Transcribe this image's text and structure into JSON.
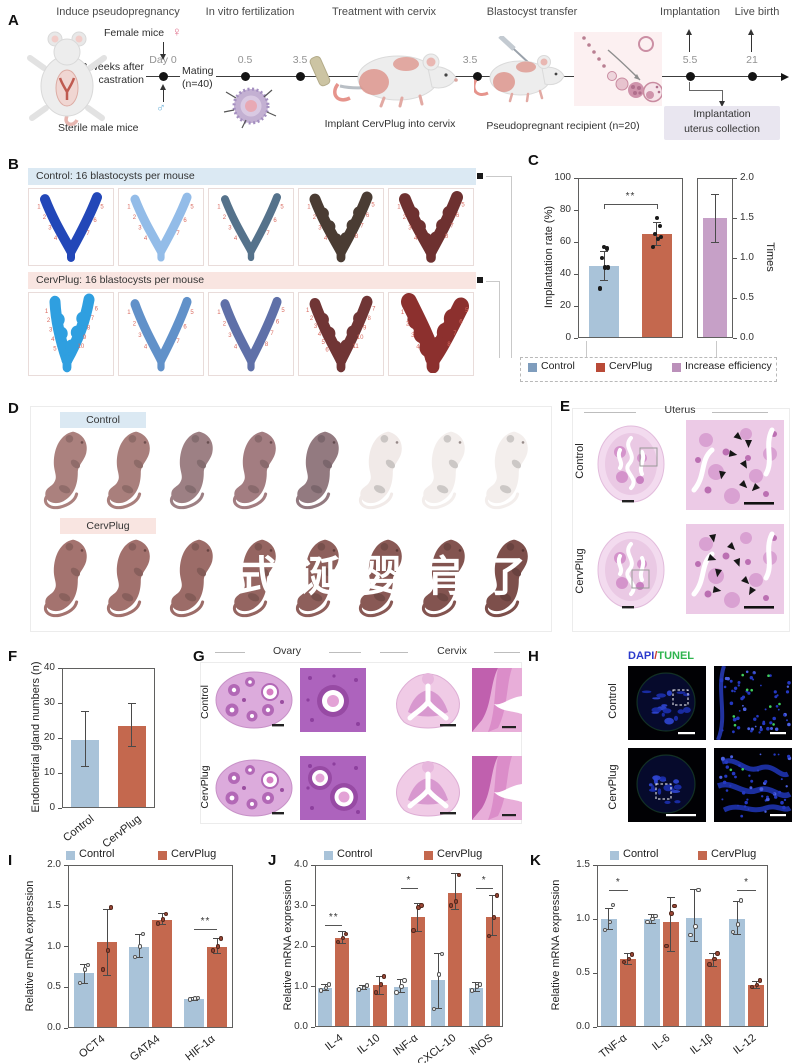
{
  "figure": {
    "panel_a": {
      "label": "A",
      "phases": [
        "Induce pseudopregnancy",
        "In vitro fertilization",
        "Treatment with cervix",
        "Blastocyst transfer",
        "Implantation",
        "Live birth"
      ],
      "female_label": "Female mice",
      "female_symbol": "♀",
      "male_symbol": "♂",
      "castration": [
        "2 weeks after",
        "castration"
      ],
      "sterile_label": "Sterile male mice",
      "day0_label": "Day 0",
      "mating": [
        "Mating",
        "(n=40)"
      ],
      "timepoints": [
        "0.5",
        "3.5",
        "3.5",
        "5.5",
        "21"
      ],
      "implant_caption": "Implant CervPlug into cervix",
      "recipient_caption": "Pseudopregnant recipient (n=20)",
      "collection_box": [
        "Implantation",
        "uterus collection"
      ]
    },
    "panel_b": {
      "label": "B",
      "control_header": "Control: 16 blastocysts per mouse",
      "cervplug_header": "CervPlug: 16 blastocysts per mouse",
      "site_number_color": "#d96a5f",
      "control_uteri": [
        {
          "color": "#2247b8",
          "sites": 7,
          "w": 10,
          "shape": "v"
        },
        {
          "color": "#93bce8",
          "sites": 7,
          "w": 9,
          "shape": "v"
        },
        {
          "color": "#55728b",
          "sites": 7,
          "w": 8,
          "shape": "v"
        },
        {
          "color": "#4a3c33",
          "sites": 8,
          "w": 11,
          "shape": "v"
        },
        {
          "color": "#6e3130",
          "sites": 8,
          "w": 12,
          "shape": "v"
        }
      ],
      "cervplug_uteri": [
        {
          "color": "#2f9fe0",
          "sites": 10,
          "w": 11,
          "shape": "narrow"
        },
        {
          "color": "#6191c9",
          "sites": 7,
          "w": 9,
          "shape": "v"
        },
        {
          "color": "#5f70a8",
          "sites": 8,
          "w": 9,
          "shape": "v"
        },
        {
          "color": "#703535",
          "sites": 11,
          "w": 11,
          "shape": "v"
        },
        {
          "color": "#8c302e",
          "sites": 8,
          "w": 16,
          "shape": "blob"
        }
      ]
    },
    "panel_c": {
      "label": "C",
      "legend": [
        {
          "label": "Control",
          "color": "#7f9dbd"
        },
        {
          "label": "CervPlug",
          "color": "#b94a37"
        },
        {
          "label": "Increase efficiency",
          "color": "#bb90ba"
        }
      ]
    },
    "panel_d": {
      "label": "D",
      "control_chip": "Control",
      "cervplug_chip": "CervPlug",
      "control_pup_colors": [
        "#ab817e",
        "#a97f7c",
        "#9d8084",
        "#a37d81",
        "#937a80",
        "#f1eae8",
        "#f3eeec",
        "#f3eeec"
      ],
      "cervplug_pup_colors": [
        "#a4736f",
        "#a2716d",
        "#9c6c68",
        "#956561",
        "#8e5f5b",
        "#895955",
        "#835450",
        "#7d4f4b"
      ],
      "watermark_chars": [
        "式",
        "诞",
        "婴",
        "肩",
        "了"
      ]
    },
    "panel_e": {
      "label": "E",
      "title": "Uterus",
      "rows": [
        "Control",
        "CervPlug"
      ]
    },
    "panel_f": {
      "label": "F"
    },
    "panel_g": {
      "label": "G",
      "col_titles": [
        "Ovary",
        "Cervix"
      ],
      "rows": [
        "Control",
        "CervPlug"
      ]
    },
    "panel_h": {
      "label": "H",
      "title_parts": [
        {
          "text": "DAPI",
          "color": "#2b3acc"
        },
        {
          "text": "/",
          "color": "#d03a30"
        },
        {
          "text": "TUNEL",
          "color": "#2eb44e"
        }
      ],
      "rows": [
        "Control",
        "CervPlug"
      ]
    },
    "panel_i": {
      "label": "I"
    },
    "panel_j": {
      "label": "J"
    },
    "panel_k": {
      "label": "K"
    }
  },
  "chart_data": [
    {
      "id": "implantation",
      "type": "bar",
      "ylabel": "Implantation rate (%)",
      "ylim": [
        0,
        100
      ],
      "yticks": [
        "0",
        "20",
        "40",
        "60",
        "80",
        "100"
      ],
      "categories": [
        "Control",
        "CervPlug"
      ],
      "values": [
        45,
        65
      ],
      "errors": [
        [
          36,
          54
        ],
        [
          58,
          72
        ]
      ],
      "dots": [
        [
          31,
          44,
          44,
          50,
          56,
          57
        ],
        [
          57,
          62,
          63,
          65,
          70,
          75
        ]
      ],
      "colors": [
        "#a9c3d9",
        "#c4684e"
      ],
      "significance": [
        {
          "a": 0,
          "b": 1,
          "y": 84,
          "label": "**"
        }
      ],
      "show_xticks": false
    },
    {
      "id": "efficiency",
      "type": "bar",
      "ylabel": "Times",
      "ylim": [
        0,
        2
      ],
      "yticks": [
        "0.0",
        "0.5",
        "1.0",
        "1.5",
        "2.0"
      ],
      "categories": [
        "Increase efficiency"
      ],
      "values": [
        1.5
      ],
      "errors": [
        [
          1.2,
          1.8
        ]
      ],
      "colors": [
        "#c6a0c7"
      ],
      "show_xticks": false
    },
    {
      "id": "glands",
      "type": "bar",
      "ylabel": "Endometrial gland numbers (n)",
      "ylim": [
        0,
        40
      ],
      "yticks": [
        "0",
        "10",
        "20",
        "30",
        "40"
      ],
      "categories": [
        "Control",
        "CervPlug"
      ],
      "values": [
        19.5,
        23.5
      ],
      "errors": [
        [
          12,
          27.5
        ],
        [
          17.5,
          30
        ]
      ],
      "colors": [
        "#a9c3d9",
        "#c4684e"
      ]
    },
    {
      "id": "mrna_embryo",
      "type": "grouped_bar",
      "ylabel": "Relative mRNA expression",
      "ylim": [
        0,
        2
      ],
      "yticks": [
        "0.0",
        "0.5",
        "1.0",
        "1.5",
        "2.0"
      ],
      "categories": [
        "OCT4",
        "GATA4",
        "HIF-1α"
      ],
      "series": [
        {
          "name": "Control",
          "color": "#a9c3d9",
          "values": [
            0.67,
            1.0,
            0.36
          ],
          "errors": [
            [
              0.55,
              0.78
            ],
            [
              0.86,
              1.15
            ],
            [
              0.34,
              0.38
            ]
          ],
          "dots": [
            [
              0.55,
              0.72,
              0.77
            ],
            [
              0.87,
              1.0,
              1.15
            ],
            [
              0.35,
              0.36,
              0.37
            ]
          ]
        },
        {
          "name": "CervPlug",
          "color": "#c4684e",
          "values": [
            1.05,
            1.33,
            1.0
          ],
          "errors": [
            [
              0.65,
              1.45
            ],
            [
              1.27,
              1.4
            ],
            [
              0.92,
              1.1
            ]
          ],
          "dots": [
            [
              0.72,
              0.95,
              1.48
            ],
            [
              1.28,
              1.33,
              1.4
            ],
            [
              0.95,
              1.0,
              1.1
            ]
          ]
        }
      ],
      "significance": [
        {
          "cat": 2,
          "y": 1.22,
          "label": "**"
        }
      ]
    },
    {
      "id": "mrna_immune_up",
      "type": "grouped_bar",
      "ylabel": "Relative mRNA expression",
      "ylim": [
        0,
        4
      ],
      "yticks": [
        "0.0",
        "1.0",
        "2.0",
        "3.0",
        "4.0"
      ],
      "categories": [
        "IL-4",
        "IL-10",
        "INF-α",
        "CXCL-10",
        "iNOS"
      ],
      "series": [
        {
          "name": "Control",
          "color": "#a9c3d9",
          "values": [
            0.97,
            0.97,
            1.0,
            1.15,
            0.97
          ],
          "errors": [
            [
              0.9,
              1.05
            ],
            [
              0.92,
              1.03
            ],
            [
              0.85,
              1.17
            ],
            [
              0.45,
              1.82
            ],
            [
              0.88,
              1.1
            ]
          ],
          "dots": [
            [
              0.9,
              0.97,
              1.05
            ],
            [
              0.93,
              0.97,
              1.02
            ],
            [
              0.85,
              1.0,
              1.15
            ],
            [
              0.45,
              1.3,
              1.8
            ],
            [
              0.9,
              1.0,
              1.05
            ]
          ]
        },
        {
          "name": "CervPlug",
          "color": "#c4684e",
          "values": [
            2.2,
            1.03,
            2.72,
            3.3,
            2.72
          ],
          "errors": [
            [
              2.05,
              2.35
            ],
            [
              0.8,
              1.25
            ],
            [
              2.35,
              3.05
            ],
            [
              2.9,
              3.78
            ],
            [
              2.25,
              3.25
            ]
          ],
          "dots": [
            [
              2.1,
              2.2,
              2.3
            ],
            [
              0.85,
              1.05,
              1.25
            ],
            [
              2.38,
              2.95,
              3.0
            ],
            [
              3.0,
              3.1,
              3.75
            ],
            [
              2.25,
              2.7,
              3.25
            ]
          ]
        }
      ],
      "significance": [
        {
          "cat": 0,
          "y": 2.52,
          "label": "**"
        },
        {
          "cat": 2,
          "y": 3.42,
          "label": "*"
        },
        {
          "cat": 4,
          "y": 3.42,
          "label": "*"
        }
      ]
    },
    {
      "id": "mrna_immune_down",
      "type": "grouped_bar",
      "ylabel": "Relative mRNA expression",
      "ylim": [
        0,
        1.5
      ],
      "yticks": [
        "0.0",
        "0.5",
        "1.0",
        "1.5"
      ],
      "categories": [
        "TNF-α",
        "IL-6",
        "IL-1β",
        "IL-12"
      ],
      "series": [
        {
          "name": "Control",
          "color": "#a9c3d9",
          "values": [
            1.0,
            1.0,
            1.01,
            1.0
          ],
          "errors": [
            [
              0.9,
              1.1
            ],
            [
              0.96,
              1.04
            ],
            [
              0.79,
              1.27
            ],
            [
              0.86,
              1.16
            ]
          ],
          "dots": [
            [
              0.9,
              0.97,
              1.13
            ],
            [
              0.97,
              1.0,
              1.03
            ],
            [
              0.85,
              0.93,
              1.27
            ],
            [
              0.88,
              0.95,
              1.17
            ]
          ]
        },
        {
          "name": "CervPlug",
          "color": "#c4684e",
          "values": [
            0.63,
            0.97,
            0.63,
            0.39
          ],
          "errors": [
            [
              0.58,
              0.68
            ],
            [
              0.7,
              1.2
            ],
            [
              0.56,
              0.68
            ],
            [
              0.36,
              0.42
            ]
          ],
          "dots": [
            [
              0.6,
              0.63,
              0.67
            ],
            [
              0.75,
              1.05,
              1.12
            ],
            [
              0.58,
              0.63,
              0.68
            ],
            [
              0.37,
              0.39,
              0.43
            ]
          ]
        }
      ],
      "significance": [
        {
          "cat": 0,
          "y": 1.27,
          "label": "*"
        },
        {
          "cat": 3,
          "y": 1.27,
          "label": "*"
        }
      ]
    }
  ]
}
